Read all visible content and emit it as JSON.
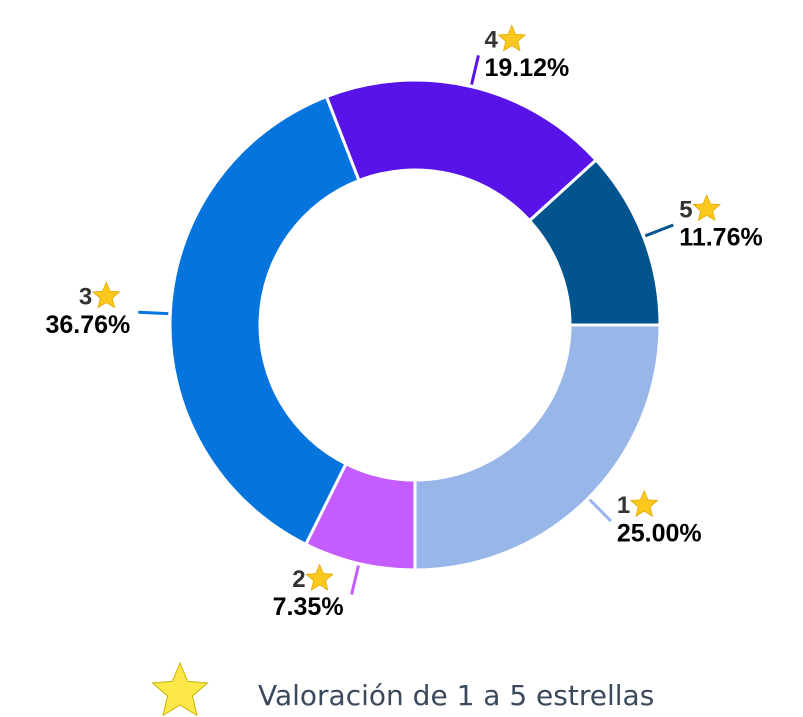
{
  "chart_data": {
    "type": "donut",
    "categories": [
      "1",
      "2",
      "3",
      "4",
      "5"
    ],
    "values": [
      25.0,
      7.35,
      36.76,
      19.12,
      11.76
    ],
    "value_labels": [
      "25.00%",
      "7.35%",
      "36.76%",
      "19.12%",
      "11.76%"
    ],
    "colors": [
      "#98b7e8",
      "#c55cff",
      "#0575dd",
      "#5713e8",
      "#02548f"
    ],
    "legend_label": "Valoración de 1 a 5 estrellas"
  }
}
